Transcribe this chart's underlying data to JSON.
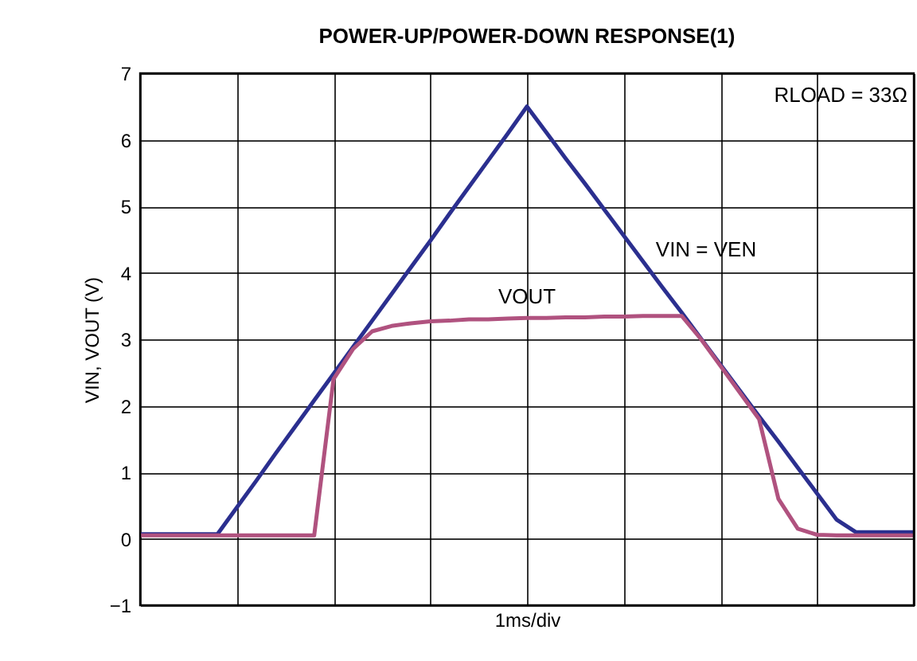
{
  "chart_data": {
    "type": "line",
    "title": "POWER-UP/POWER-DOWN RESPONSE(1)",
    "xlabel": "1ms/div",
    "ylabel": "VIN, VOUT (V)",
    "categories": [
      null,
      null,
      null,
      null,
      null,
      null,
      null,
      null,
      null,
      null,
      null,
      null,
      null,
      null,
      null,
      null,
      null,
      null,
      null,
      null,
      null,
      null,
      null,
      null,
      null,
      null,
      null,
      null,
      null,
      null,
      null,
      null,
      null,
      null,
      null,
      null,
      null,
      null,
      null,
      null,
      null
    ],
    "series": [
      {
        "name": "VIN = VEN",
        "color": "#2b2f8f",
        "values": [
          0.07,
          0.07,
          0.07,
          0.07,
          0.07,
          0.47,
          0.87,
          1.28,
          1.68,
          2.08,
          2.48,
          2.88,
          3.28,
          3.68,
          4.08,
          4.48,
          4.89,
          5.29,
          5.69,
          6.09,
          6.5,
          6.11,
          5.72,
          5.34,
          4.95,
          4.56,
          4.17,
          3.78,
          3.4,
          3.01,
          2.62,
          2.23,
          1.84,
          1.46,
          1.07,
          0.68,
          0.29,
          0.1,
          0.1,
          0.1,
          0.1
        ]
      },
      {
        "name": "VOUT",
        "color": "#b0527f",
        "values": [
          0.05,
          0.05,
          0.05,
          0.05,
          0.05,
          0.05,
          0.05,
          0.05,
          0.05,
          0.05,
          2.4,
          2.85,
          3.12,
          3.2,
          3.24,
          3.27,
          3.28,
          3.3,
          3.3,
          3.31,
          3.32,
          3.32,
          3.33,
          3.33,
          3.34,
          3.34,
          3.35,
          3.35,
          3.35,
          3.0,
          2.6,
          2.2,
          1.8,
          0.6,
          0.15,
          0.06,
          0.05,
          0.05,
          0.05,
          0.05,
          0.05
        ]
      }
    ],
    "annotations": [
      "RLOAD = 33Ω"
    ],
    "ylim": [
      -1,
      7
    ],
    "yticks": [
      -1,
      0,
      1,
      2,
      3,
      4,
      5,
      6,
      7
    ],
    "grid": true,
    "legend": false,
    "marker": "none",
    "line_style": "solid"
  }
}
